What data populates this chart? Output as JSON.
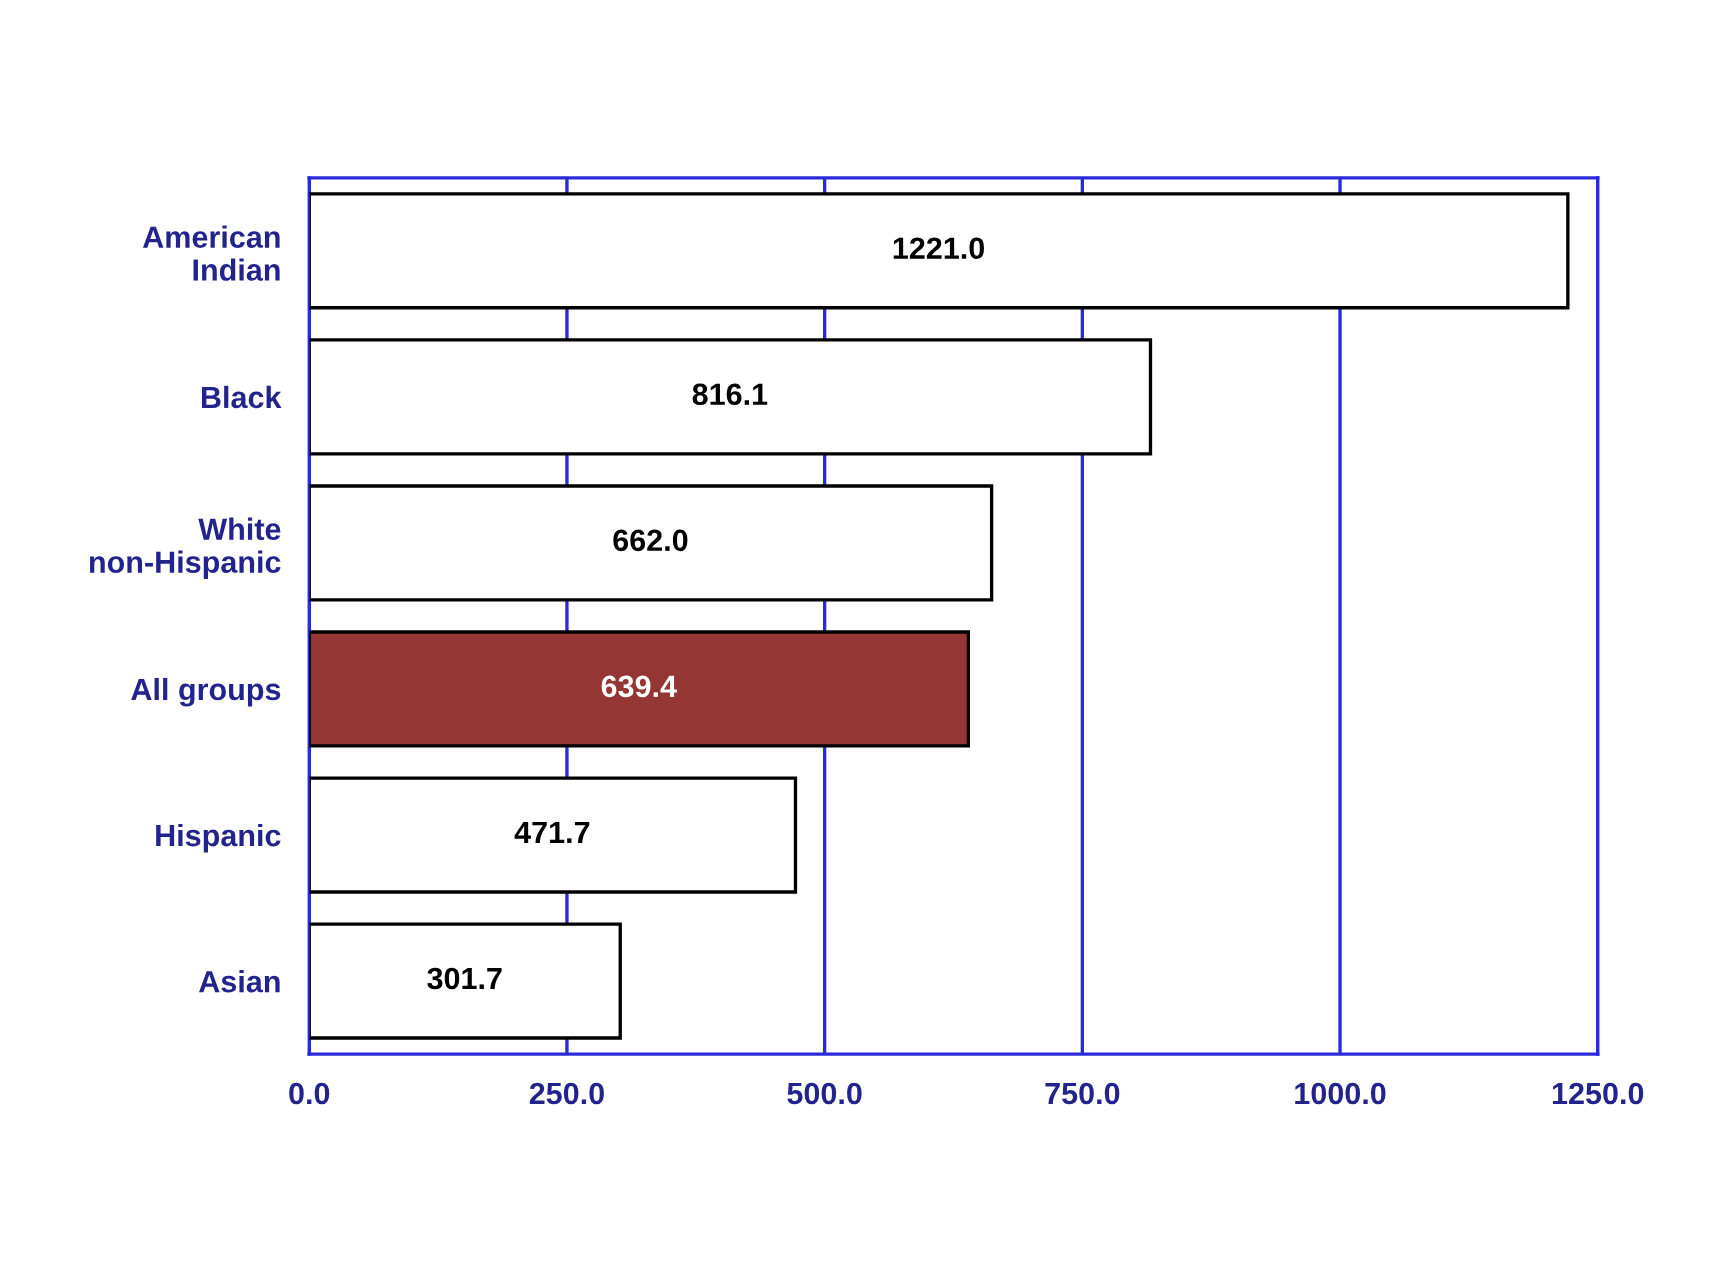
{
  "chart_data": {
    "type": "bar",
    "orientation": "horizontal",
    "categories": [
      "American Indian",
      "Black",
      "White non-Hispanic",
      "All groups",
      "Hispanic",
      "Asian"
    ],
    "values": [
      1221.0,
      816.1,
      662.0,
      639.4,
      471.7,
      301.7
    ],
    "value_labels": [
      "1221.0",
      "816.1",
      "662.0",
      "639.4",
      "471.7",
      "301.7"
    ],
    "colors": [
      "#ffffff",
      "#ffffff",
      "#ffffff",
      "#943634",
      "#ffffff",
      "#ffffff"
    ],
    "xlim": [
      0,
      1250
    ],
    "xticks": [
      {
        "value": 0,
        "label": "0.0"
      },
      {
        "value": 250,
        "label": "250.0"
      },
      {
        "value": 500,
        "label": "500.0"
      },
      {
        "value": 750,
        "label": "750.0"
      },
      {
        "value": 1000,
        "label": "1000.0"
      },
      {
        "value": 1250,
        "label": "1250.0"
      }
    ],
    "grid": true,
    "legend": false
  }
}
